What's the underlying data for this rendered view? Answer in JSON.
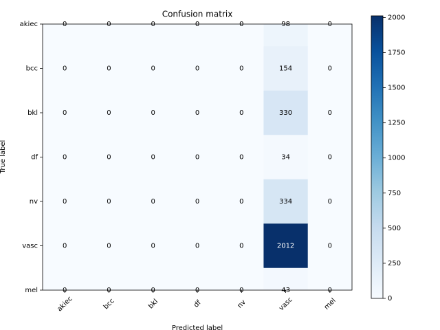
{
  "chart_data": {
    "type": "heatmap",
    "title": "Confusion matrix",
    "xlabel": "Predicted label",
    "ylabel": "True label",
    "x_categories": [
      "akiec",
      "bcc",
      "bkl",
      "df",
      "nv",
      "vasc",
      "mel"
    ],
    "y_categories": [
      "akiec",
      "bcc",
      "bkl",
      "df",
      "nv",
      "vasc",
      "mel"
    ],
    "values": [
      [
        0,
        0,
        0,
        0,
        0,
        98,
        0
      ],
      [
        0,
        0,
        0,
        0,
        0,
        154,
        0
      ],
      [
        0,
        0,
        0,
        0,
        0,
        330,
        0
      ],
      [
        0,
        0,
        0,
        0,
        0,
        34,
        0
      ],
      [
        0,
        0,
        0,
        0,
        0,
        334,
        0
      ],
      [
        0,
        0,
        0,
        0,
        0,
        2012,
        0
      ],
      [
        0,
        0,
        0,
        0,
        0,
        43,
        0
      ]
    ],
    "colormap": "Blues",
    "clim": [
      0,
      2012
    ],
    "colorbar_ticks": [
      0,
      250,
      500,
      750,
      1000,
      1250,
      1500,
      1750,
      2000
    ]
  }
}
